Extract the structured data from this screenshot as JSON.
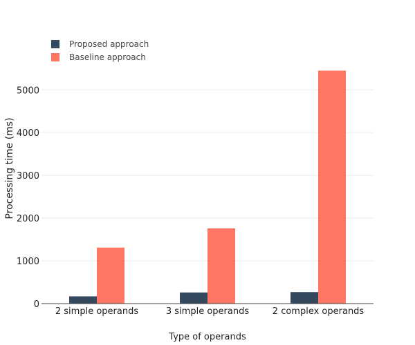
{
  "chart_data": {
    "type": "bar",
    "categories": [
      "2 simple operands",
      "3 simple operands",
      "2 complex operands"
    ],
    "series": [
      {
        "name": "Proposed approach",
        "values": [
          170,
          260,
          270
        ],
        "color": "#34495e"
      },
      {
        "name": "Baseline approach",
        "values": [
          1310,
          1760,
          5450
        ],
        "color": "#ff7664"
      }
    ],
    "xlabel": "Type of operands",
    "ylabel": "Processing time (ms)",
    "ylim": [
      0,
      5650
    ],
    "yticks": [
      0,
      1000,
      2000,
      3000,
      4000,
      5000
    ],
    "grid": true,
    "legend_position": "top-left"
  }
}
